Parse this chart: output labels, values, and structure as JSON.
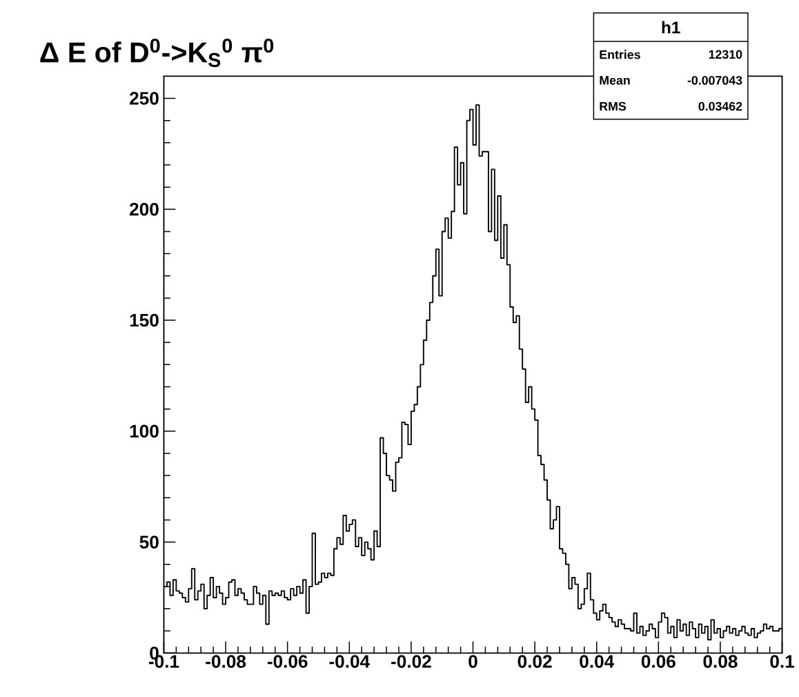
{
  "chart_data": {
    "type": "histogram",
    "title": "Δ E of D$^{0}$->K$_{S}$$^{0}$ π$^{0}$",
    "annotations": [
      "h1",
      "Entries",
      "12310",
      "Mean",
      "-0.007043",
      "RMS",
      "0.03462"
    ],
    "color": "#000000",
    "xlim": [
      -0.1,
      0.1
    ],
    "ylim": [
      0,
      260
    ],
    "xticks": [
      -0.1,
      -0.08,
      -0.06,
      -0.04,
      -0.02,
      0,
      0.02,
      0.04,
      0.06,
      0.08,
      0.1
    ],
    "yticks": [
      0,
      50,
      100,
      150,
      200,
      250
    ],
    "bins": [
      -0.1,
      -0.099,
      -0.098,
      -0.097,
      -0.096,
      -0.095,
      -0.094,
      -0.093,
      -0.092,
      -0.091,
      -0.09,
      -0.089,
      -0.088,
      -0.087,
      -0.086,
      -0.085,
      -0.084,
      -0.083,
      -0.082,
      -0.081,
      -0.08,
      -0.079,
      -0.078,
      -0.077,
      -0.076,
      -0.075,
      -0.074,
      -0.073,
      -0.072,
      -0.071,
      -0.07,
      -0.069,
      -0.068,
      -0.067,
      -0.066,
      -0.065,
      -0.064,
      -0.063,
      -0.062,
      -0.061,
      -0.06,
      -0.059,
      -0.058,
      -0.057,
      -0.056,
      -0.055,
      -0.054,
      -0.053,
      -0.052,
      -0.051,
      -0.05,
      -0.049,
      -0.048,
      -0.047,
      -0.046,
      -0.045,
      -0.044,
      -0.043,
      -0.042,
      -0.041,
      -0.04,
      -0.039,
      -0.038,
      -0.037,
      -0.036,
      -0.035,
      -0.034,
      -0.033,
      -0.032,
      -0.031,
      -0.03,
      -0.029,
      -0.028,
      -0.027,
      -0.026,
      -0.025,
      -0.024,
      -0.023,
      -0.022,
      -0.021,
      -0.02,
      -0.019,
      -0.018,
      -0.017,
      -0.016,
      -0.015,
      -0.014,
      -0.013,
      -0.012,
      -0.011,
      -0.01,
      -0.009,
      -0.008,
      -0.007,
      -0.006,
      -0.005,
      -0.004,
      -0.003,
      -0.002,
      -0.001,
      0,
      0.001,
      0.002,
      0.003,
      0.004,
      0.005,
      0.006,
      0.007,
      0.008,
      0.009,
      0.01,
      0.011,
      0.012,
      0.013,
      0.014,
      0.015,
      0.016,
      0.017,
      0.018,
      0.019,
      0.02,
      0.021,
      0.022,
      0.023,
      0.024,
      0.025,
      0.026,
      0.027,
      0.028,
      0.029,
      0.03,
      0.031,
      0.032,
      0.033,
      0.034,
      0.035,
      0.036,
      0.037,
      0.038,
      0.039,
      0.04,
      0.041,
      0.042,
      0.043,
      0.044,
      0.045,
      0.046,
      0.047,
      0.048,
      0.049,
      0.05,
      0.051,
      0.052,
      0.053,
      0.054,
      0.055,
      0.056,
      0.057,
      0.058,
      0.059,
      0.06,
      0.061,
      0.062,
      0.063,
      0.064,
      0.065,
      0.066,
      0.067,
      0.068,
      0.069,
      0.07,
      0.071,
      0.072,
      0.073,
      0.074,
      0.075,
      0.076,
      0.077,
      0.078,
      0.079,
      0.08,
      0.081,
      0.082,
      0.083,
      0.084,
      0.085,
      0.086,
      0.087,
      0.088,
      0.089,
      0.09,
      0.091,
      0.092,
      0.093,
      0.094,
      0.095,
      0.096,
      0.097,
      0.098,
      0.099,
      0.1
    ],
    "values": [
      30,
      32,
      26,
      33,
      28,
      27,
      25,
      23,
      29,
      38,
      24,
      28,
      31,
      20,
      26,
      34,
      25,
      30,
      27,
      22,
      25,
      32,
      33,
      26,
      29,
      27,
      24,
      22,
      22,
      30,
      27,
      22,
      26,
      13,
      28,
      26,
      27,
      26,
      28,
      25,
      24,
      29,
      26,
      30,
      27,
      33,
      18,
      30,
      54,
      31,
      32,
      36,
      34,
      36,
      35,
      47,
      52,
      49,
      62,
      55,
      58,
      60,
      48,
      52,
      44,
      50,
      47,
      42,
      55,
      48,
      97,
      90,
      80,
      78,
      73,
      86,
      88,
      104,
      103,
      94,
      109,
      112,
      120,
      130,
      141,
      150,
      158,
      170,
      182,
      161,
      190,
      196,
      187,
      199,
      228,
      211,
      221,
      198,
      240,
      245,
      229,
      247,
      224,
      226,
      226,
      190,
      218,
      186,
      206,
      178,
      193,
      175,
      156,
      149,
      152,
      137,
      128,
      113,
      120,
      110,
      105,
      89,
      85,
      78,
      69,
      56,
      60,
      66,
      47,
      45,
      40,
      29,
      34,
      31,
      20,
      22,
      29,
      36,
      24,
      18,
      15,
      19,
      22,
      18,
      16,
      14,
      12,
      15,
      13,
      11,
      11,
      10,
      18,
      9,
      12,
      8,
      10,
      13,
      11,
      7,
      14,
      18,
      16,
      9,
      12,
      7,
      15,
      10,
      13,
      8,
      14,
      11,
      7,
      13,
      9,
      12,
      6,
      15,
      9,
      11,
      7,
      10,
      12,
      9,
      11,
      8,
      10,
      12,
      9,
      8,
      11,
      7,
      9,
      10,
      13,
      11,
      12,
      10,
      10,
      11
    ]
  }
}
